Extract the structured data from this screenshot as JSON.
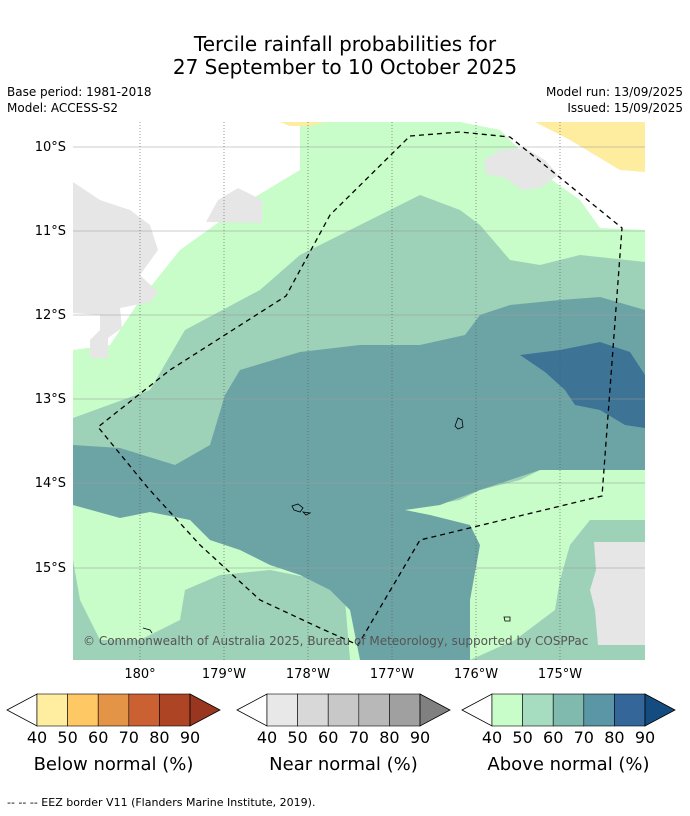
{
  "title": {
    "line1": "Tercile rainfall probabilities for",
    "line2": "27 September to 10 October 2025"
  },
  "meta": {
    "base_period": "Base period: 1981-2018",
    "model": "Model: ACCESS-S2",
    "model_run": "Model run: 13/09/2025",
    "issued": "Issued: 15/09/2025"
  },
  "map": {
    "lat_ticks": [
      "10°S",
      "11°S",
      "12°S",
      "13°S",
      "14°S",
      "15°S"
    ],
    "lon_ticks": [
      "180°",
      "179°W",
      "178°W",
      "177°W",
      "176°W",
      "175°W"
    ],
    "copyright": "© Commonwealth of Australia 2025, Bureau of Meteorology, supported by COSPPac",
    "colors": {
      "land": "#e6e6e6",
      "above_40": "#c8fcc8",
      "above_50": "#9dd1b8",
      "above_60": "#6ca4a6",
      "above_70": "#3d7394",
      "below_40": "#feec9f"
    }
  },
  "colorbars": [
    {
      "title": "Below normal (%)",
      "labels": [
        "40",
        "50",
        "60",
        "70",
        "80",
        "90"
      ],
      "colors": [
        "#ffeea0",
        "#fec965",
        "#e39446",
        "#cb6133",
        "#ad4525",
        "#983620"
      ]
    },
    {
      "title": "Near normal (%)",
      "labels": [
        "40",
        "50",
        "60",
        "70",
        "80",
        "90"
      ],
      "colors": [
        "#e8e8e8",
        "#d8d8d8",
        "#c8c8c8",
        "#b8b8b8",
        "#a0a0a0",
        "#808080"
      ]
    },
    {
      "title": "Above normal (%)",
      "labels": [
        "40",
        "50",
        "60",
        "70",
        "80",
        "90"
      ],
      "colors": [
        "#c8fcc8",
        "#a6dcc0",
        "#80b9ae",
        "#5b96a6",
        "#34669a",
        "#154c80"
      ]
    }
  ],
  "footnote": "--  --  -- EEZ border V11 (Flanders Marine Institute, 2019)."
}
